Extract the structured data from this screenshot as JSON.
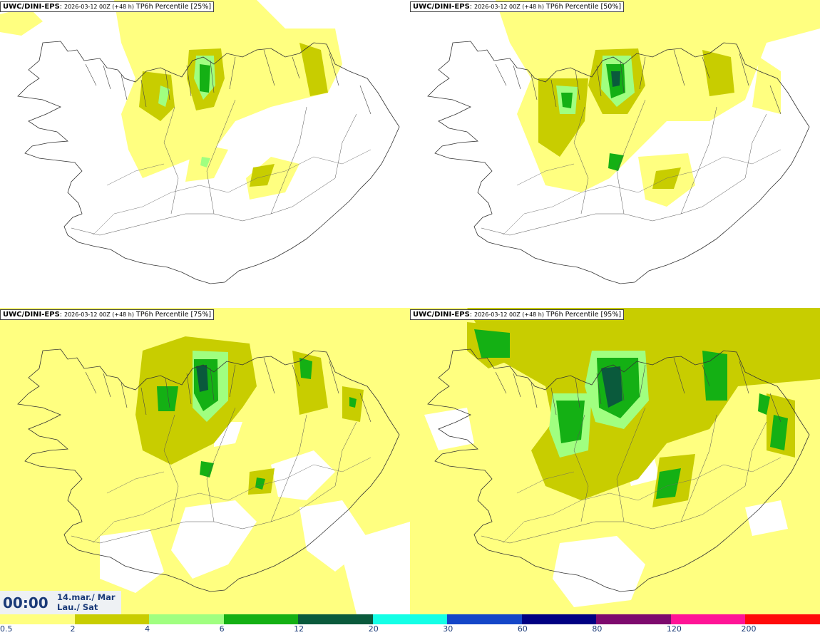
{
  "panels": [
    {
      "model": "UWC/DINI-EPS",
      "run": "2026-03-12 00Z (+48 h)",
      "field": "TP6h Percentile [25%]"
    },
    {
      "model": "UWC/DINI-EPS",
      "run": "2026-03-12 00Z (+48 h)",
      "field": "TP6h Percentile [50%]"
    },
    {
      "model": "UWC/DINI-EPS",
      "run": "2026-03-12 00Z (+48 h)",
      "field": "TP6h Percentile [75%]"
    },
    {
      "model": "UWC/DINI-EPS",
      "run": "2026-03-12 00Z (+48 h)",
      "field": "TP6h Percentile [95%]"
    }
  ],
  "valid": {
    "time": "00:00",
    "date_line1": "14.mar./ Mar",
    "date_line2": "Lau./ Sat"
  },
  "legend": {
    "ticks": [
      "0.5",
      "2",
      "4",
      "6",
      "12",
      "20",
      "30",
      "60",
      "80",
      "120",
      "200"
    ],
    "colors": [
      "#ffff80",
      "#c8cd00",
      "#a0ff80",
      "#14b014",
      "#0a5a3c",
      "#14ffe6",
      "#1446c8",
      "#000082",
      "#7d0a6e",
      "#ff1496",
      "#ff0a0a"
    ]
  },
  "palette": {
    "light_yellow": "#ffff80",
    "olive": "#c8cd00",
    "light_green": "#a0ff80",
    "green": "#14b014",
    "dark_green": "#0a5a3c"
  }
}
